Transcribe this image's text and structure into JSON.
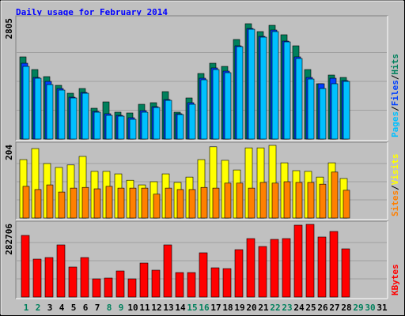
{
  "chart_data": {
    "type": "bar",
    "title": "Daily usage for February 2014",
    "title_color": "#0000ff",
    "separator": "/",
    "categories": [
      "1",
      "2",
      "3",
      "4",
      "5",
      "6",
      "7",
      "8",
      "9",
      "10",
      "11",
      "12",
      "13",
      "14",
      "15",
      "16",
      "17",
      "18",
      "19",
      "20",
      "21",
      "22",
      "23",
      "24",
      "25",
      "26",
      "27",
      "28",
      "29",
      "30",
      "31"
    ],
    "weekend": [
      0,
      1,
      7,
      8,
      14,
      15,
      21,
      22,
      28,
      29
    ],
    "weekend_color": "#00805c",
    "label_color": "#000000",
    "panels": [
      {
        "max": 2805,
        "series": [
          {
            "name": "Hits",
            "color": "#00805c",
            "values": [
              1998,
              1690,
              1518,
              1306,
              1114,
              1229,
              749,
              903,
              653,
              634,
              845,
              884,
              1153,
              653,
              999,
              1594,
              1844,
              1767,
              2421,
              2805,
              2613,
              2766,
              2536,
              2267,
              1690,
              1345,
              1556,
              1498,
              null,
              null,
              null
            ]
          },
          {
            "name": "Files",
            "color": "#0040ff",
            "values": [
              1844,
              1498,
              1402,
              1229,
              1018,
              1133,
              672,
              615,
              576,
              518,
              691,
              787,
              960,
              615,
              884,
              1479,
              1729,
              1652,
              2267,
              2689,
              2497,
              2651,
              2382,
              1998,
              1498,
              1345,
              1479,
              1421,
              null,
              null,
              null
            ]
          },
          {
            "name": "Pages",
            "color": "#00c0ff",
            "values": [
              1767,
              1479,
              1325,
              1191,
              999,
              1114,
              653,
              576,
              557,
              480,
              653,
              768,
              941,
              596,
              845,
              1441,
              1690,
              1614,
              2248,
              2670,
              2478,
              2613,
              2363,
              1959,
              1460,
              1229,
              1345,
              1402,
              null,
              null,
              null
            ]
          }
        ]
      },
      {
        "max": 204,
        "series": [
          {
            "name": "Visits",
            "color": "#ffff00",
            "values": [
              164,
              195,
              153,
              142,
              149,
              173,
              131,
              131,
              124,
              106,
              93,
              102,
              124,
              100,
              115,
              164,
              200,
              162,
              135,
              197,
              197,
              204,
              155,
              133,
              131,
              115,
              155,
              111,
              null,
              null,
              null
            ]
          },
          {
            "name": "Sites",
            "color": "#ff8000",
            "values": [
              89,
              80,
              93,
              73,
              84,
              86,
              82,
              89,
              84,
              84,
              84,
              67,
              84,
              80,
              80,
              86,
              84,
              98,
              98,
              84,
              100,
              98,
              102,
              100,
              100,
              95,
              129,
              78,
              null,
              null,
              null
            ]
          }
        ]
      },
      {
        "max": 282706,
        "series": [
          {
            "name": "KBytes",
            "color": "#ff0000",
            "values": [
              239694,
              147504,
              153650,
              202818,
              116774,
              153650,
              70679,
              73752,
              101409,
              70679,
              132139,
              104482,
              202818,
              95263,
              95263,
              172088,
              113701,
              110628,
              184380,
              227402,
              196672,
              224329,
              227402,
              279643,
              282706,
              233548,
              255059,
              187453,
              null,
              null,
              null
            ]
          }
        ]
      }
    ]
  }
}
